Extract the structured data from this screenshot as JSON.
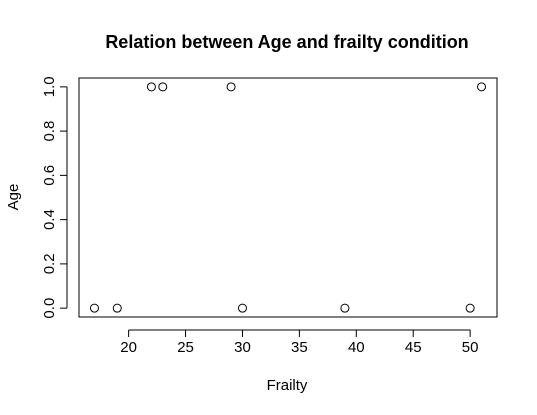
{
  "chart_data": {
    "type": "scatter",
    "title": "Relation between Age and frailty condition",
    "xlabel": "Frailty",
    "ylabel": "Age",
    "xlim": [
      15.64,
      52.36
    ],
    "ylim": [
      -0.04,
      1.04
    ],
    "xticks": [
      20,
      25,
      30,
      35,
      40,
      45,
      50
    ],
    "yticks": [
      0.0,
      0.2,
      0.4,
      0.6,
      0.8,
      1.0
    ],
    "xtick_labels": [
      "20",
      "25",
      "30",
      "35",
      "40",
      "45",
      "50"
    ],
    "ytick_labels": [
      "0.0",
      "0.2",
      "0.4",
      "0.6",
      "0.8",
      "1.0"
    ],
    "grid": false,
    "points": [
      {
        "x": 17,
        "y": 0
      },
      {
        "x": 19,
        "y": 0
      },
      {
        "x": 22,
        "y": 1
      },
      {
        "x": 23,
        "y": 1
      },
      {
        "x": 29,
        "y": 1
      },
      {
        "x": 30,
        "y": 0
      },
      {
        "x": 39,
        "y": 0
      },
      {
        "x": 50,
        "y": 0
      },
      {
        "x": 51,
        "y": 1
      }
    ]
  }
}
